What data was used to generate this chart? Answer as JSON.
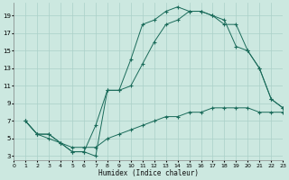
{
  "xlabel": "Humidex (Indice chaleur)",
  "bg_color": "#cce8e0",
  "grid_color": "#aad0c8",
  "line_color": "#1a6b5a",
  "curve1_x": [
    1,
    2,
    3,
    4,
    5,
    6,
    7,
    8,
    9,
    10,
    11,
    12,
    13,
    14,
    15,
    16,
    17,
    18,
    19,
    20,
    21,
    22,
    23
  ],
  "curve1_y": [
    7,
    5.5,
    5.5,
    4.5,
    3.5,
    3.5,
    3.0,
    10.5,
    10.5,
    14.0,
    18.0,
    18.5,
    19.5,
    20.0,
    19.5,
    19.5,
    19.0,
    18.5,
    15.5,
    15.0,
    13.0,
    9.5,
    8.5
  ],
  "curve2_x": [
    1,
    2,
    3,
    4,
    5,
    6,
    7,
    8,
    9,
    10,
    11,
    12,
    13,
    14,
    15,
    16,
    17,
    18,
    19,
    20,
    21,
    22,
    23
  ],
  "curve2_y": [
    7,
    5.5,
    5.5,
    4.5,
    3.5,
    3.5,
    6.5,
    10.5,
    10.5,
    11.0,
    13.5,
    16.0,
    18.0,
    18.5,
    19.5,
    19.5,
    19.0,
    18.0,
    18.0,
    15.0,
    13.0,
    9.5,
    8.5
  ],
  "curve3_x": [
    1,
    2,
    3,
    4,
    5,
    6,
    7,
    8,
    9,
    10,
    11,
    12,
    13,
    14,
    15,
    16,
    17,
    18,
    19,
    20,
    21,
    22,
    23
  ],
  "curve3_y": [
    7.0,
    5.5,
    5.0,
    4.5,
    4.0,
    4.0,
    4.0,
    5.0,
    5.5,
    6.0,
    6.5,
    7.0,
    7.5,
    7.5,
    8.0,
    8.0,
    8.5,
    8.5,
    8.5,
    8.5,
    8.0,
    8.0,
    8.0
  ],
  "xlim": [
    0,
    23
  ],
  "ylim": [
    2.5,
    20.5
  ],
  "ytick_min": 3,
  "ytick_max": 19,
  "ytick_step": 2,
  "xticks": [
    0,
    1,
    2,
    3,
    4,
    5,
    6,
    7,
    8,
    9,
    10,
    11,
    12,
    13,
    14,
    15,
    16,
    17,
    18,
    19,
    20,
    21,
    22,
    23
  ]
}
